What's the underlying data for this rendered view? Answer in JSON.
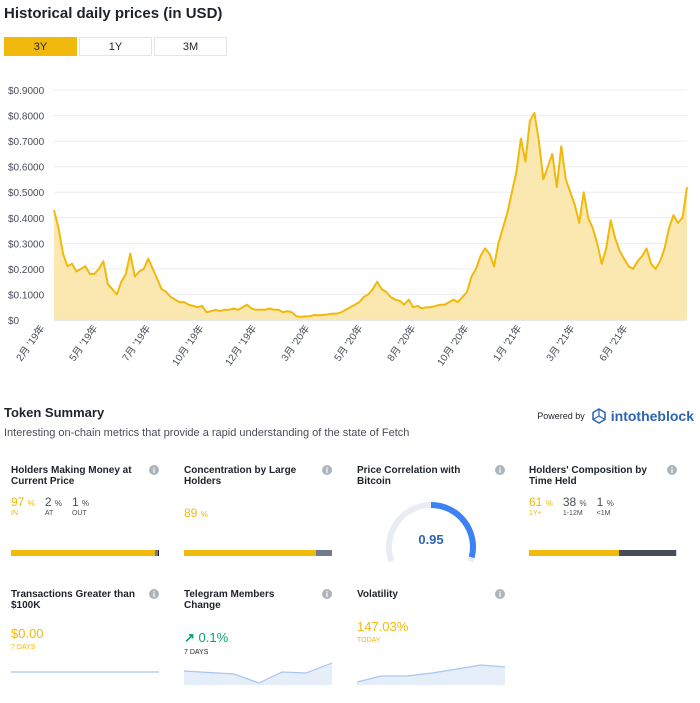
{
  "header": {
    "title": "Historical daily prices (in USD)"
  },
  "tabs": [
    {
      "label": "3Y",
      "active": true
    },
    {
      "label": "1Y",
      "active": false
    },
    {
      "label": "3M",
      "active": false
    }
  ],
  "chart_data": {
    "type": "area",
    "ylabel": "",
    "ylim": [
      0,
      0.9
    ],
    "yticks": [
      "$0.9000",
      "$0.8000",
      "$0.7000",
      "$0.6000",
      "$0.5000",
      "$0.4000",
      "$0.3000",
      "$0.2000",
      "$0.1000",
      "$0"
    ],
    "xticks": [
      "2月 '19年",
      "5月 '19年",
      "7月 '19年",
      "10月 '19年",
      "12月 '19年",
      "3月 '20年",
      "5月 '20年",
      "8月 '20年",
      "10月 '20年",
      "1月 '21年",
      "3月 '21年",
      "6月 '21年"
    ],
    "color": "#f0b90b",
    "fill": "#fbe6a8",
    "grid": true,
    "series": [
      {
        "values": [
          0.43,
          0.36,
          0.26,
          0.21,
          0.22,
          0.19,
          0.2,
          0.21,
          0.18,
          0.18,
          0.2,
          0.23,
          0.14,
          0.12,
          0.1,
          0.15,
          0.18,
          0.26,
          0.17,
          0.19,
          0.2,
          0.24,
          0.2,
          0.16,
          0.12,
          0.11,
          0.09,
          0.08,
          0.07,
          0.07,
          0.06,
          0.055,
          0.05,
          0.055,
          0.03,
          0.035,
          0.04,
          0.035,
          0.04,
          0.04,
          0.045,
          0.04,
          0.05,
          0.06,
          0.045,
          0.04,
          0.04,
          0.04,
          0.045,
          0.04,
          0.04,
          0.03,
          0.035,
          0.03,
          0.015,
          0.012,
          0.014,
          0.015,
          0.02,
          0.018,
          0.02,
          0.022,
          0.025,
          0.025,
          0.03,
          0.04,
          0.05,
          0.06,
          0.07,
          0.09,
          0.1,
          0.12,
          0.15,
          0.12,
          0.11,
          0.09,
          0.08,
          0.075,
          0.06,
          0.08,
          0.05,
          0.055,
          0.045,
          0.05,
          0.05,
          0.055,
          0.06,
          0.06,
          0.07,
          0.08,
          0.07,
          0.09,
          0.11,
          0.17,
          0.2,
          0.25,
          0.28,
          0.26,
          0.21,
          0.3,
          0.36,
          0.42,
          0.5,
          0.58,
          0.71,
          0.62,
          0.78,
          0.81,
          0.7,
          0.55,
          0.6,
          0.65,
          0.52,
          0.68,
          0.55,
          0.5,
          0.45,
          0.38,
          0.5,
          0.4,
          0.36,
          0.3,
          0.22,
          0.28,
          0.39,
          0.32,
          0.27,
          0.24,
          0.21,
          0.2,
          0.23,
          0.25,
          0.28,
          0.22,
          0.2,
          0.23,
          0.28,
          0.36,
          0.41,
          0.38,
          0.4,
          0.52
        ]
      }
    ]
  },
  "summary": {
    "title": "Token Summary",
    "subtitle": "Interesting on-chain metrics that provide a rapid understanding of the state of Fetch",
    "powered_by": "Powered by",
    "brand": "intotheblock"
  },
  "cards": {
    "holders": {
      "title": "Holders Making Money at Current Price",
      "stats": [
        {
          "v": "97",
          "l": "IN"
        },
        {
          "v": "2",
          "l": "AT"
        },
        {
          "v": "1",
          "l": "OUT"
        }
      ],
      "pct": [
        97,
        2,
        1
      ],
      "colors": [
        "#f0b90b",
        "#707a8a",
        "#1e2329"
      ]
    },
    "concentration": {
      "title": "Concentration by Large Holders",
      "stats": [
        {
          "v": "89",
          "l": ""
        }
      ],
      "pct": [
        89,
        11
      ],
      "colors": [
        "#f0b90b",
        "#707a8a"
      ]
    },
    "correlation": {
      "title": "Price Correlation with Bitcoin",
      "value": "0.95",
      "color": "#3b82f6"
    },
    "composition": {
      "title": "Holders' Composition by Time Held",
      "stats": [
        {
          "v": "61",
          "l": "1Y+"
        },
        {
          "v": "38",
          "l": "1-12M"
        },
        {
          "v": "1",
          "l": "<1M"
        }
      ],
      "pct": [
        61,
        38,
        1
      ],
      "colors": [
        "#f0b90b",
        "#474d57",
        "#d0d4da"
      ]
    },
    "transactions": {
      "title": "Transactions Greater than $100K",
      "value": "$0.00",
      "label": "7 DAYS"
    },
    "telegram": {
      "title": "Telegram Members Change",
      "value": "0.1%",
      "label": "7 DAYS"
    },
    "volatility": {
      "title": "Volatility",
      "value": "147.03%",
      "label": "TODAY"
    }
  },
  "pct_sign": "%",
  "info_glyph": "i"
}
